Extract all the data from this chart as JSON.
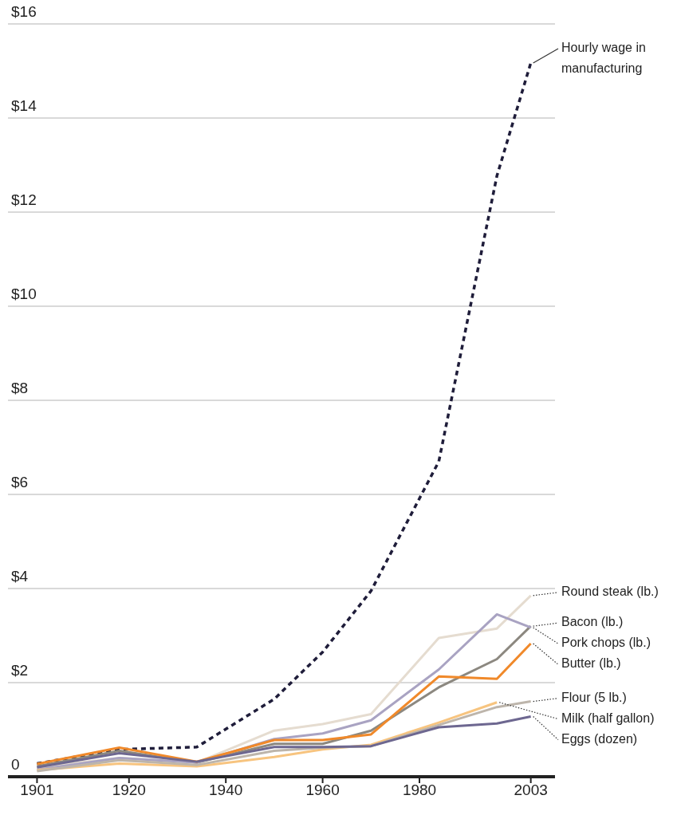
{
  "chart_data": {
    "type": "line",
    "x": [
      1901,
      1918,
      1934,
      1950,
      1960,
      1970,
      1984,
      1996,
      2003
    ],
    "xlim": [
      1895,
      2008
    ],
    "xticks": [
      1901,
      1920,
      1940,
      1960,
      1980,
      2003
    ],
    "ylim": [
      0,
      16
    ],
    "yticks": [
      {
        "value": 0,
        "label": "0"
      },
      {
        "value": 2,
        "label": "$2"
      },
      {
        "value": 4,
        "label": "$4"
      },
      {
        "value": 6,
        "label": "$6"
      },
      {
        "value": 8,
        "label": "$8"
      },
      {
        "value": 10,
        "label": "$10"
      },
      {
        "value": 12,
        "label": "$12"
      },
      {
        "value": 14,
        "label": "$14"
      },
      {
        "value": 16,
        "label": "$16"
      }
    ],
    "grid": "y",
    "marker": "none",
    "series": [
      {
        "name": "Hourly wage in manufacturing",
        "color": "#1f1d3a",
        "line_style": "dashed",
        "values": [
          0.28,
          0.58,
          0.63,
          1.65,
          2.65,
          3.95,
          6.7,
          12.77,
          15.17
        ]
      },
      {
        "name": "Round steak (lb.)",
        "color": "#e5dcd0",
        "values": [
          0.2,
          0.4,
          0.3,
          0.98,
          1.12,
          1.33,
          2.95,
          3.15,
          3.85
        ]
      },
      {
        "name": "Bacon (lb.)",
        "color": "#8c8880",
        "values": [
          0.22,
          0.55,
          0.3,
          0.7,
          0.7,
          0.98,
          1.9,
          2.5,
          3.2
        ]
      },
      {
        "name": "Pork chops (lb.)",
        "color": "#a9a3c2",
        "values": [
          0.15,
          0.4,
          0.3,
          0.8,
          0.92,
          1.2,
          2.28,
          3.45,
          3.17
        ]
      },
      {
        "name": "Butter (lb.)",
        "color": "#f0892a",
        "values": [
          0.27,
          0.62,
          0.32,
          0.78,
          0.78,
          0.9,
          2.13,
          2.08,
          2.83
        ]
      },
      {
        "name": "Milk (half gallon)",
        "color": "#f7c47f",
        "values": [
          0.14,
          0.28,
          0.22,
          0.42,
          0.58,
          0.68,
          1.15,
          1.58,
          null
        ]
      },
      {
        "name": "Flour (5 lb.)",
        "color": "#bdb5ab",
        "values": [
          0.12,
          0.35,
          0.25,
          0.55,
          0.62,
          0.65,
          1.1,
          1.48,
          1.6
        ]
      },
      {
        "name": "Eggs (dozen)",
        "color": "#6d6790",
        "values": [
          0.2,
          0.5,
          0.32,
          0.63,
          0.63,
          0.65,
          1.05,
          1.13,
          1.28
        ]
      }
    ]
  }
}
